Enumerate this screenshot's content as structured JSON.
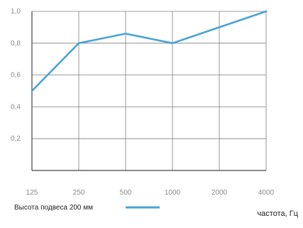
{
  "chart_data": {
    "type": "line",
    "categories": [
      "125",
      "250",
      "500",
      "1000",
      "2000",
      "4000"
    ],
    "series": [
      {
        "name": "Высота подвеса 200 мм",
        "values": [
          0.5,
          0.8,
          0.86,
          0.8,
          0.9,
          1.0
        ]
      }
    ],
    "y_ticks": [
      "1,0",
      "0,8",
      "0,6",
      "0,4",
      "0,2"
    ],
    "y_tick_values": [
      1.0,
      0.8,
      0.6,
      0.4,
      0.2
    ],
    "ylim": [
      0,
      1.0
    ],
    "xlabel": "частота, Гц",
    "ylabel": "",
    "title": "",
    "grid": true,
    "legend_position": "bottom-left",
    "colors": {
      "series": "#4aa3d8",
      "grid": "#7f7f7f",
      "axis": "#444444",
      "tick_text": "#8a8a8a"
    }
  }
}
